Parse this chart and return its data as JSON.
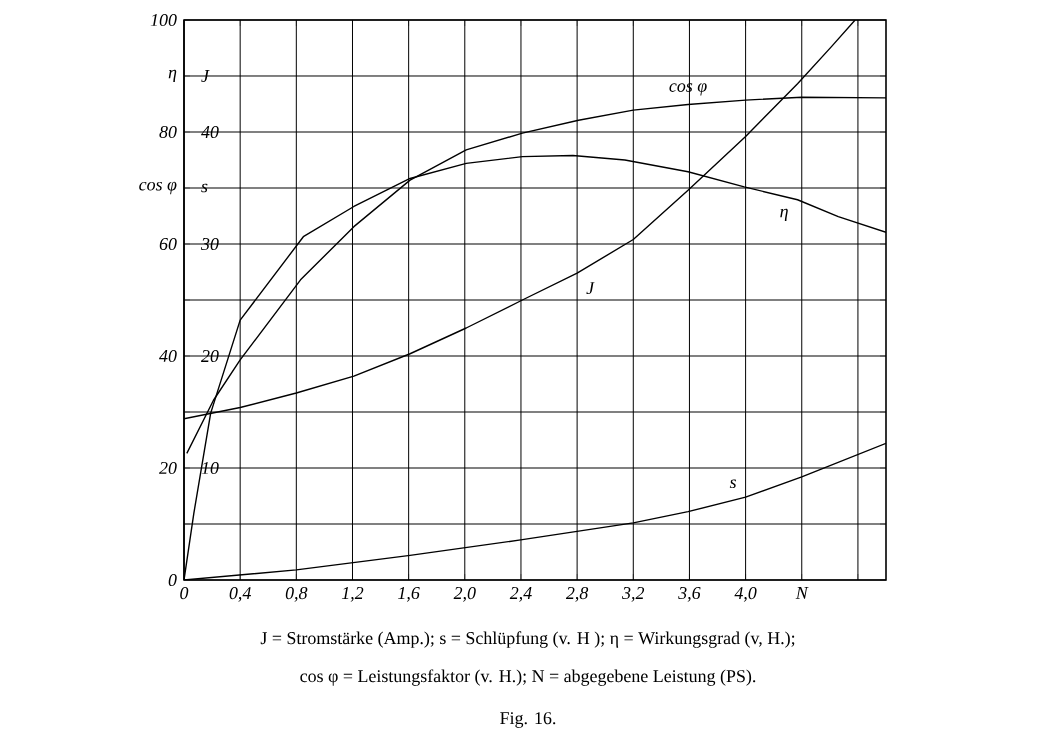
{
  "chart_data": {
    "type": "line",
    "annotations": [
      "J = Stromstärke (Amp.); s = Schlüpfung (v. H ); η = Wirkungsgrad (v, H.);",
      "cos φ = Leistungsfaktor (v. H.); N = abgegebene Leistung (PS).",
      "Fig. 16."
    ],
    "series": [
      {
        "name": "cos φ",
        "color": "#000000",
        "x": [
          0.02,
          0.21,
          0.4,
          0.83,
          1.21,
          1.61,
          2.01,
          2.41,
          2.81,
          3.2,
          3.59,
          4.0,
          4.4,
          5.0
        ],
        "values": [
          22.6,
          32.1,
          39.3,
          53.6,
          63.1,
          71.4,
          76.8,
          79.8,
          82.1,
          83.9,
          84.9,
          85.7,
          86.2,
          86.1
        ]
      },
      {
        "name": "η",
        "color": "#000000",
        "x": [
          0,
          0.07,
          0.19,
          0.4,
          0.85,
          1.21,
          1.61,
          2.01,
          2.41,
          2.77,
          3.14,
          3.59,
          3.99,
          4.37,
          4.66,
          5.0
        ],
        "values": [
          0,
          11.9,
          29.8,
          46.4,
          61.3,
          66.7,
          71.7,
          74.4,
          75.6,
          75.8,
          75.0,
          72.9,
          70.2,
          67.9,
          64.9,
          62.1
        ]
      },
      {
        "name": "J",
        "color": "#000000",
        "axis": "y2",
        "x": [
          0,
          0.4,
          0.8,
          1.21,
          1.61,
          2.01,
          2.41,
          2.8,
          3.2,
          3.59,
          4.0,
          4.37,
          4.61,
          4.78
        ],
        "values": [
          14.4,
          15.4,
          16.7,
          18.2,
          20.2,
          22.5,
          25.0,
          27.4,
          30.4,
          34.8,
          39.6,
          44.3,
          47.6,
          50
        ]
      },
      {
        "name": "s",
        "color": "#000000",
        "axis": "y2",
        "x": [
          0,
          0.8,
          1.61,
          2.41,
          3.2,
          3.59,
          4.0,
          4.4,
          5.0
        ],
        "values": [
          0,
          0.9,
          2.2,
          3.6,
          5.1,
          6.1,
          7.4,
          9.2,
          12.2
        ]
      }
    ],
    "xlim": [
      0,
      5
    ],
    "xticks": [
      0,
      {
        "value": 0.4,
        "label": "0,4"
      },
      {
        "value": 0.8,
        "label": "0,8"
      },
      {
        "value": 1.2,
        "label": "1,2"
      },
      {
        "value": 1.6,
        "label": "1,6"
      },
      {
        "value": 2.0,
        "label": "2,0"
      },
      {
        "value": 2.4,
        "label": "2,4"
      },
      {
        "value": 2.8,
        "label": "2,8"
      },
      {
        "value": 3.2,
        "label": "3,2"
      },
      {
        "value": 3.6,
        "label": "3,6"
      },
      {
        "value": 4.0,
        "label": "4,0"
      },
      {
        "value": 4.4,
        "label": "N"
      },
      {
        "value": 4.8,
        "label": null
      }
    ],
    "ylim": [
      0,
      100
    ],
    "yticks": [
      0,
      {
        "value": 10,
        "label": null
      },
      20,
      {
        "value": 30,
        "label": null
      },
      40,
      {
        "value": 50,
        "label": null
      },
      60,
      {
        "value": 70,
        "label": "cos φ"
      },
      80,
      {
        "value": 90,
        "label": "η"
      },
      100
    ],
    "y2lim": [
      0,
      50
    ],
    "y2ticks": [
      10,
      20,
      30,
      {
        "value": 35,
        "label": "s"
      },
      40,
      {
        "value": 45,
        "label": "J"
      }
    ],
    "grid": true,
    "line_style": "solid"
  }
}
